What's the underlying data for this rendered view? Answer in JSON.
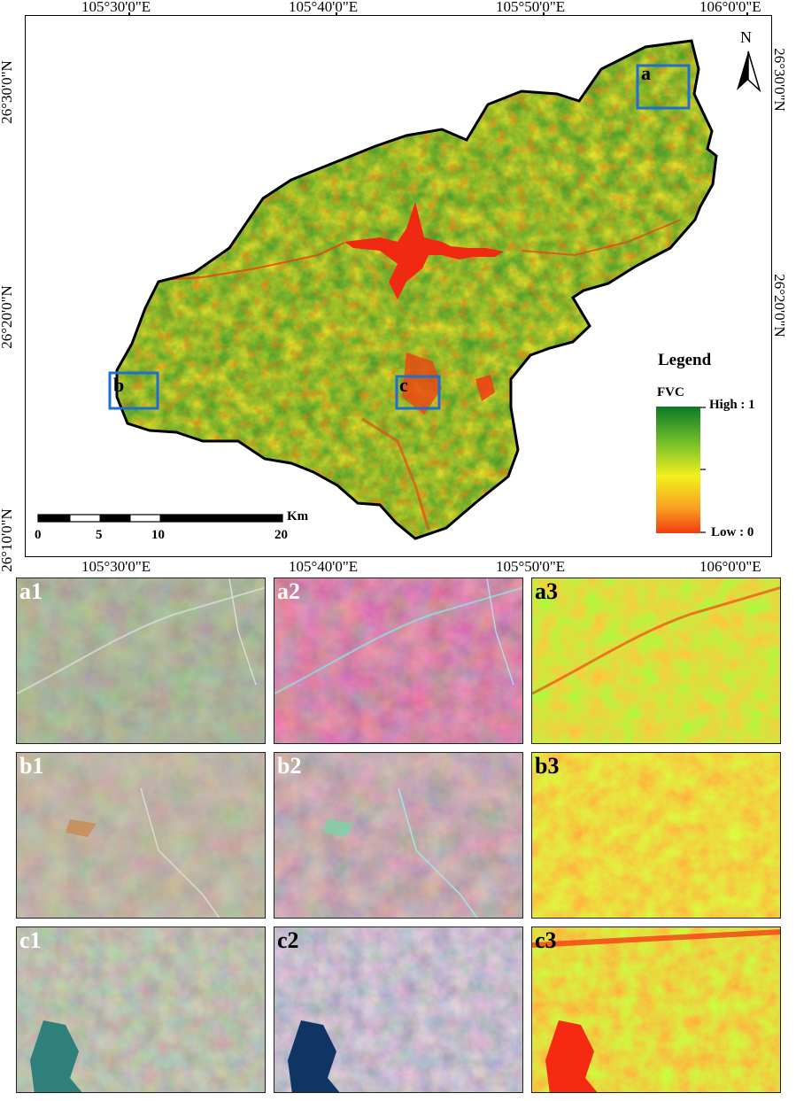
{
  "coordinate_labels": {
    "top_lon": [
      "105°30'0\"E",
      "105°40'0\"E",
      "105°50'0\"E",
      "106°0'0\"E"
    ],
    "bottom_lon": [
      "105°30'0\"E",
      "105°40'0\"E",
      "105°50'0\"E",
      "106°0'0\"E"
    ],
    "left_lat": [
      "26°30'0\"N",
      "26°20'0\"N",
      "26°10'0\"N"
    ],
    "right_lat": [
      "26°30'0\"N",
      "26°20'0\"N"
    ]
  },
  "north_arrow": {
    "label": "N",
    "icon": "north-arrow-icon"
  },
  "boxes": [
    "a",
    "b",
    "c"
  ],
  "legend": {
    "title": "Legend",
    "variable": "FVC",
    "high_label": "High : 1",
    "low_label": "Low : 0",
    "colors": [
      "#0a7a28",
      "#7cc22a",
      "#f2f01e",
      "#f8a020",
      "#f23c10"
    ]
  },
  "scale_bar": {
    "unit": "Km",
    "ticks": [
      "0",
      "5",
      "10",
      "20"
    ]
  },
  "panels": [
    {
      "label": "a1",
      "kind": "true-color"
    },
    {
      "label": "a2",
      "kind": "false-color"
    },
    {
      "label": "a3",
      "kind": "fvc"
    },
    {
      "label": "b1",
      "kind": "true-color"
    },
    {
      "label": "b2",
      "kind": "false-color"
    },
    {
      "label": "b3",
      "kind": "fvc"
    },
    {
      "label": "c1",
      "kind": "true-color"
    },
    {
      "label": "c2",
      "kind": "false-color"
    },
    {
      "label": "c3",
      "kind": "fvc"
    }
  ]
}
